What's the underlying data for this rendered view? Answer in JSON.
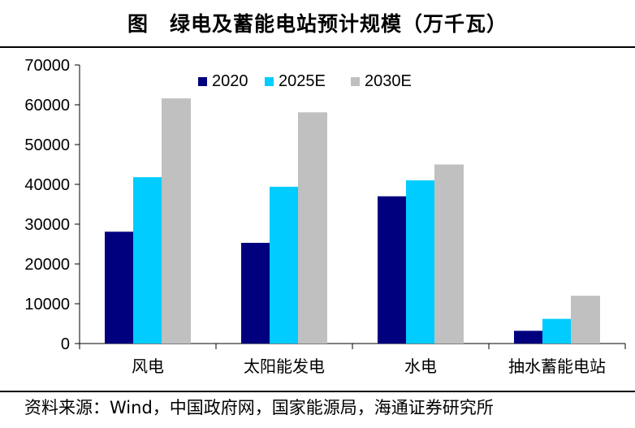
{
  "header": {
    "title": "图　绿电及蓄能电站预计规模（万千瓦）"
  },
  "chart_data": {
    "type": "bar",
    "title": "绿电及蓄能电站预计规模（万千瓦）",
    "xlabel": "",
    "ylabel": "",
    "categories": [
      "风电",
      "太阳能发电",
      "水电",
      "抽水蓄能电站"
    ],
    "series": [
      {
        "name": "2020",
        "values": [
          28100,
          25300,
          37000,
          3200
        ],
        "color": "#00007F"
      },
      {
        "name": "2025E",
        "values": [
          41800,
          39400,
          41000,
          6200
        ],
        "color": "#00CCFF"
      },
      {
        "name": "2030E",
        "values": [
          61600,
          58100,
          45000,
          12000
        ],
        "color": "#C0C0C0"
      }
    ],
    "ylim": [
      0,
      70000
    ],
    "yticks": [
      0,
      10000,
      20000,
      30000,
      40000,
      50000,
      60000,
      70000
    ],
    "ytick_labels": [
      "0",
      "10000",
      "20000",
      "30000",
      "40000",
      "50000",
      "60000",
      "70000"
    ],
    "grid": false,
    "legend_position": "top"
  },
  "footer": {
    "source": "资料来源：Wind，中国政府网，国家能源局，海通证券研究所"
  }
}
